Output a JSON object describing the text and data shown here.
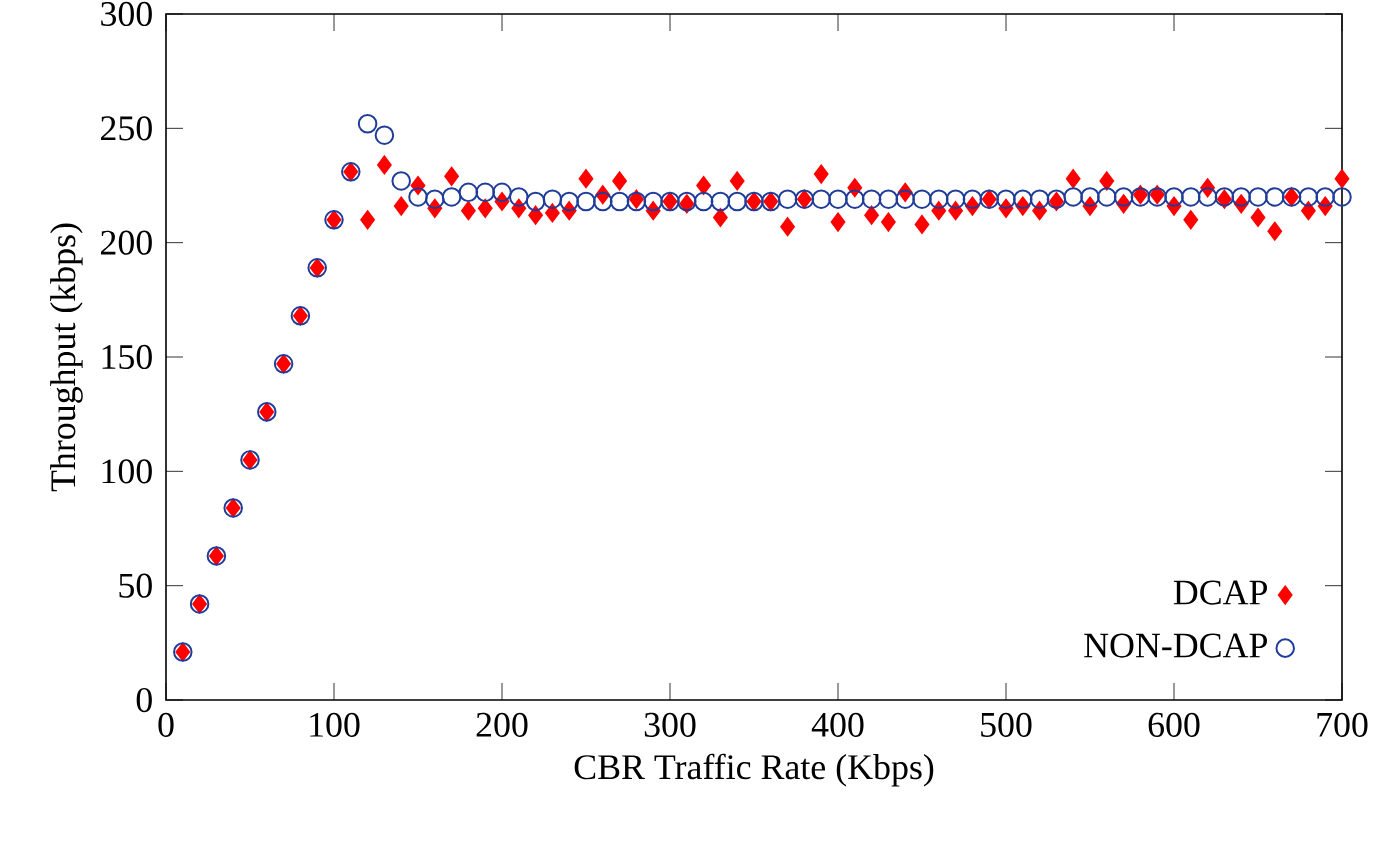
{
  "chart_data": {
    "type": "scatter",
    "xlabel": "CBR Traffic Rate (Kbps)",
    "ylabel": "Throughput (kbps)",
    "x": [
      10,
      20,
      30,
      40,
      50,
      60,
      70,
      80,
      90,
      100,
      110,
      120,
      130,
      140,
      150,
      160,
      170,
      180,
      190,
      200,
      210,
      220,
      230,
      240,
      250,
      260,
      270,
      280,
      290,
      300,
      310,
      320,
      330,
      340,
      350,
      360,
      370,
      380,
      390,
      400,
      410,
      420,
      430,
      440,
      450,
      460,
      470,
      480,
      490,
      500,
      510,
      520,
      530,
      540,
      550,
      560,
      570,
      580,
      590,
      600,
      610,
      620,
      630,
      640,
      650,
      660,
      670,
      680,
      690,
      700
    ],
    "series": [
      {
        "name": "DCAP",
        "color": "#ff0000",
        "marker": "diamond",
        "values": [
          21,
          42,
          63,
          84,
          105,
          126,
          147,
          168,
          189,
          210,
          231,
          210,
          234,
          216,
          225,
          215,
          229,
          214,
          215,
          218,
          215,
          212,
          213,
          214,
          228,
          221,
          227,
          219,
          214,
          218,
          217,
          225,
          211,
          227,
          218,
          218,
          207,
          219,
          230,
          209,
          224,
          212,
          209,
          222,
          208,
          214,
          214,
          216,
          219,
          215,
          216,
          214,
          218,
          228,
          216,
          227,
          217,
          221,
          221,
          216,
          210,
          224,
          219,
          217,
          211,
          205,
          220,
          214,
          216,
          228
        ]
      },
      {
        "name": "NON-DCAP",
        "color": "#1f3c99",
        "marker": "circle",
        "values": [
          21,
          42,
          63,
          84,
          105,
          126,
          147,
          168,
          189,
          210,
          231,
          252,
          247,
          227,
          220,
          219,
          220,
          222,
          222,
          222,
          220,
          218,
          219,
          218,
          218,
          218,
          218,
          218,
          218,
          218,
          218,
          218,
          218,
          218,
          218,
          218,
          219,
          219,
          219,
          219,
          219,
          219,
          219,
          219,
          219,
          219,
          219,
          219,
          219,
          219,
          219,
          219,
          219,
          220,
          220,
          220,
          220,
          220,
          220,
          220,
          220,
          220,
          220,
          220,
          220,
          220,
          220,
          220,
          220,
          220
        ]
      }
    ],
    "xlim": [
      0,
      700
    ],
    "ylim": [
      0,
      300
    ],
    "xticks": [
      0,
      100,
      200,
      300,
      400,
      500,
      600,
      700
    ],
    "yticks": [
      0,
      50,
      100,
      150,
      200,
      250,
      300
    ],
    "grid": false,
    "legend": "bottom right"
  }
}
